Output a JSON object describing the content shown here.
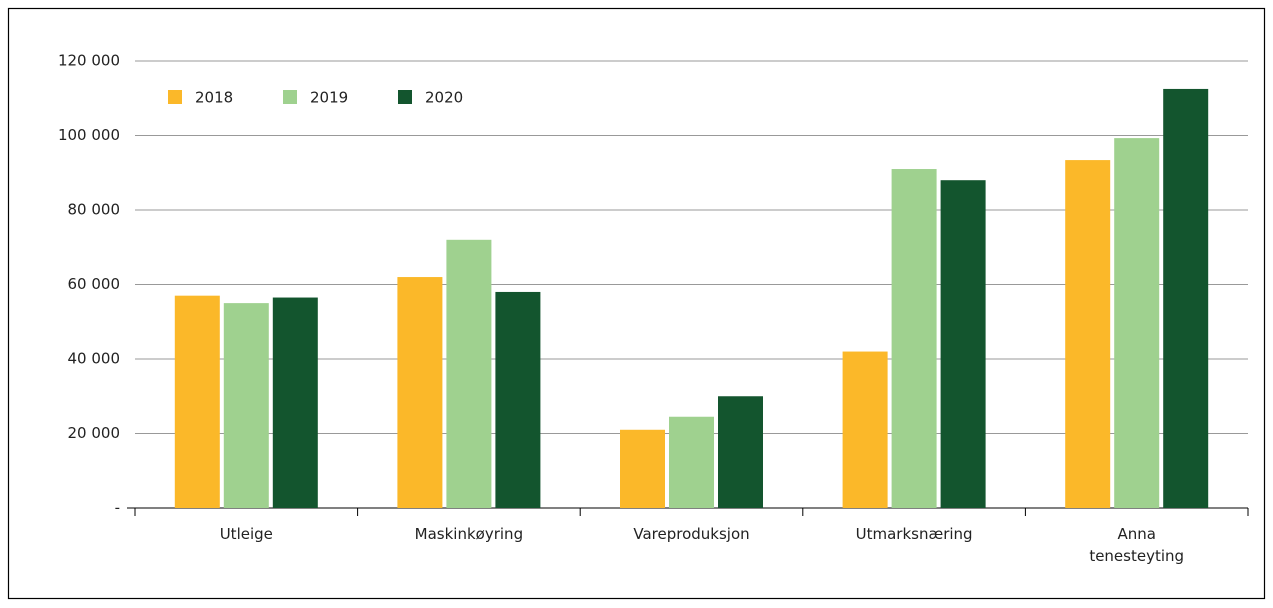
{
  "chart_data": {
    "type": "bar",
    "categories": [
      "Utleige",
      "Maskinkøyring",
      "Vareproduksjon",
      "Utmarksnæring",
      "Anna tenesteyting"
    ],
    "series": [
      {
        "name": "2018",
        "color": "#fbb829",
        "values": [
          57000,
          62000,
          21000,
          42000,
          93400
        ]
      },
      {
        "name": "2019",
        "color": "#9fd18f",
        "values": [
          55000,
          72000,
          24500,
          91000,
          99300
        ]
      },
      {
        "name": "2020",
        "color": "#13552e",
        "values": [
          56500,
          58000,
          30000,
          88000,
          112500
        ]
      }
    ],
    "ylim": [
      0,
      120000
    ],
    "yticks": [
      {
        "value": 0,
        "label": "-"
      },
      {
        "value": 20000,
        "label": "20 000"
      },
      {
        "value": 40000,
        "label": "40 000"
      },
      {
        "value": 60000,
        "label": "60 000"
      },
      {
        "value": 80000,
        "label": "80 000"
      },
      {
        "value": 100000,
        "label": "100 000"
      },
      {
        "value": 120000,
        "label": "120 000"
      }
    ],
    "grid": true,
    "legend": "top-left"
  }
}
